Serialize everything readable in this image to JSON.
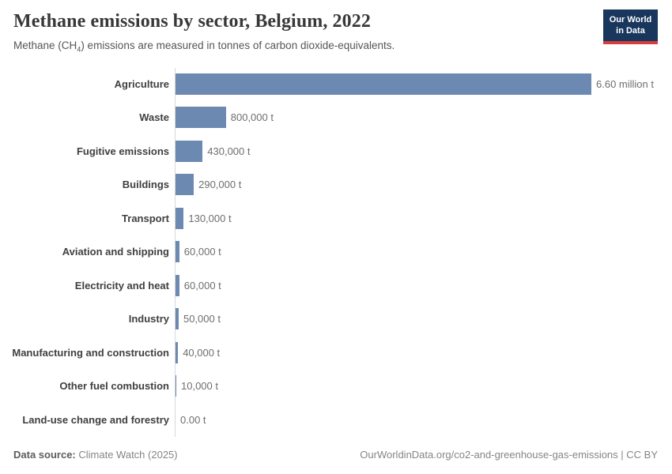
{
  "header": {
    "title": "Methane emissions by sector, Belgium, 2022",
    "subtitle_pre": "Methane (CH",
    "subtitle_sub": "4",
    "subtitle_post": ") emissions are measured in tonnes of carbon dioxide-equivalents."
  },
  "logo": {
    "line1": "Our World",
    "line2": "in Data",
    "bg_color": "#19365d",
    "accent_color": "#d63e3e"
  },
  "chart_data": {
    "type": "bar",
    "orientation": "horizontal",
    "title": "Methane emissions by sector, Belgium, 2022",
    "categories": [
      "Agriculture",
      "Waste",
      "Fugitive emissions",
      "Buildings",
      "Transport",
      "Aviation and shipping",
      "Electricity and heat",
      "Industry",
      "Manufacturing and construction",
      "Other fuel combustion",
      "Land-use change and forestry"
    ],
    "values": [
      6600000,
      800000,
      430000,
      290000,
      130000,
      60000,
      60000,
      50000,
      40000,
      10000,
      0
    ],
    "value_labels": [
      "6.60 million t",
      "800,000 t",
      "430,000 t",
      "290,000 t",
      "130,000 t",
      "60,000 t",
      "60,000 t",
      "50,000 t",
      "40,000 t",
      "10,000 t",
      "0.00 t"
    ],
    "xlim": [
      0,
      6600000
    ],
    "bar_color": "#6c8ab1",
    "grid": false,
    "legend": "none"
  },
  "footer": {
    "source_label": "Data source:",
    "source_value": "Climate Watch (2025)",
    "right_text": "OurWorldinData.org/co2-and-greenhouse-gas-emissions | CC BY"
  }
}
